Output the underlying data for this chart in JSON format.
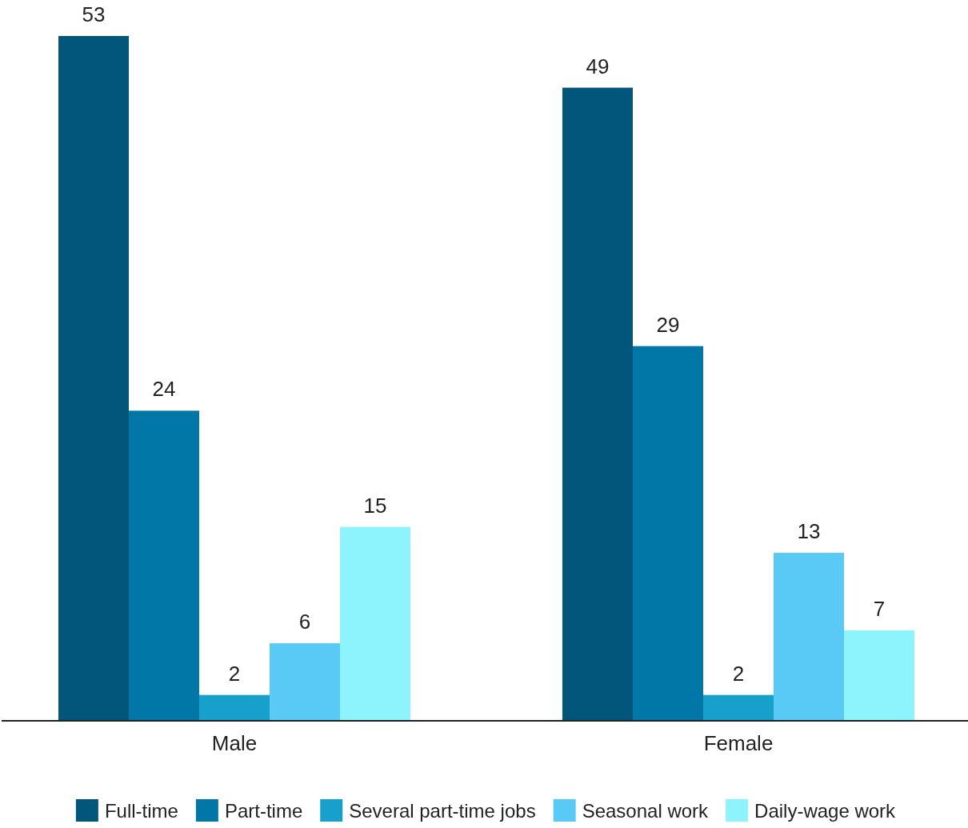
{
  "chart_data": {
    "type": "bar",
    "categories": [
      "Male",
      "Female"
    ],
    "series": [
      {
        "name": "Full-time",
        "color": "#02557b",
        "values": [
          53,
          49
        ]
      },
      {
        "name": "Part-time",
        "color": "#0077a6",
        "values": [
          24,
          29
        ]
      },
      {
        "name": "Several part-time jobs",
        "color": "#18a0cd",
        "values": [
          2,
          2
        ]
      },
      {
        "name": "Seasonal work",
        "color": "#58caf5",
        "values": [
          6,
          13
        ]
      },
      {
        "name": "Daily-wage work",
        "color": "#8df4fe",
        "values": [
          15,
          7
        ]
      }
    ],
    "data_labels": true,
    "legend": "bottom"
  }
}
